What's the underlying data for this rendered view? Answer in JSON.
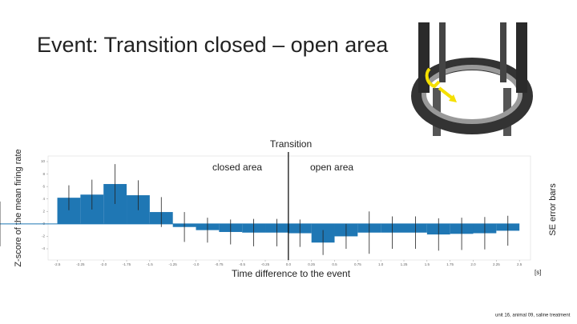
{
  "title": "Event: Transition closed – open area",
  "footnote": "unit 16, animal 09, saline treatment",
  "chart_data": {
    "type": "histogram",
    "xlabel": "Time difference to the event",
    "ylabel": "Z-score of the mean firing rate",
    "y2label": "SE error bars",
    "xunit": "[s]",
    "annotation": {
      "label": "Transition",
      "x": 0
    },
    "regions": [
      "closed area",
      "open area"
    ],
    "color": "#1f77b4",
    "bins": [
      -2.5,
      -2.25,
      -2.0,
      -1.75,
      -1.5,
      -1.25,
      -1.0,
      -0.75,
      -0.5,
      -0.25,
      0.0,
      0.25,
      0.5,
      0.75,
      1.0,
      1.25,
      1.5,
      1.75,
      2.0,
      2.25,
      2.5
    ],
    "values": [
      4.2,
      4.7,
      6.4,
      4.6,
      1.9,
      -0.5,
      -1.0,
      -1.3,
      -1.4,
      -1.4,
      -1.5,
      -3.0,
      -2.0,
      -1.4,
      -1.4,
      -1.4,
      -1.7,
      -1.6,
      -1.5,
      -1.1,
      0
    ],
    "errors": [
      2.0,
      2.4,
      3.2,
      2.4,
      2.4,
      2.4,
      2.0,
      2.0,
      2.2,
      2.2,
      2.2,
      2.0,
      2.0,
      3.4,
      2.6,
      2.6,
      2.6,
      2.6,
      2.6,
      2.4,
      3.6
    ],
    "xlim": [
      -2.6,
      2.62
    ],
    "ylim": [
      -5.8,
      10.9
    ],
    "xticks": [
      {
        "value": -2.5,
        "label": "-2.5"
      },
      -2.25,
      {
        "value": -2.0,
        "label": "-2.0"
      },
      -1.75,
      {
        "value": -1.5,
        "label": "-1.5"
      },
      -1.25,
      {
        "value": -1.0,
        "label": "-1.0"
      },
      -0.75,
      {
        "value": -0.5,
        "label": "-0.5"
      },
      -0.25,
      {
        "value": 0.0,
        "label": "0.0"
      },
      0.25,
      {
        "value": 0.5,
        "label": "0.5"
      },
      0.75,
      {
        "value": 1.0,
        "label": "1.0"
      },
      1.25,
      {
        "value": 1.5,
        "label": "1.5"
      },
      1.75,
      {
        "value": 2.0,
        "label": "2.0"
      },
      2.25,
      {
        "value": 2.5,
        "label": "2.5"
      }
    ],
    "yticks": [
      -4,
      -2,
      0,
      2,
      4,
      6,
      8,
      10
    ]
  }
}
